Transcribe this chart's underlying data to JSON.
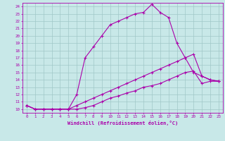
{
  "xlabel": "Windchill (Refroidissement éolien,°C)",
  "bg_color": "#c8e8e8",
  "grid_color": "#a0c8c8",
  "line_color": "#aa00aa",
  "xlim": [
    -0.5,
    23.5
  ],
  "ylim": [
    9.5,
    24.5
  ],
  "xticks": [
    0,
    1,
    2,
    3,
    4,
    5,
    6,
    7,
    8,
    9,
    10,
    11,
    12,
    13,
    14,
    15,
    16,
    17,
    18,
    19,
    20,
    21,
    22,
    23
  ],
  "yticks": [
    10,
    11,
    12,
    13,
    14,
    15,
    16,
    17,
    18,
    19,
    20,
    21,
    22,
    23,
    24
  ],
  "line1_x": [
    0,
    1,
    2,
    3,
    4,
    5,
    6,
    7,
    8,
    9,
    10,
    11,
    12,
    13,
    14,
    15,
    16,
    17,
    18,
    19,
    20,
    21,
    22,
    23
  ],
  "line1_y": [
    10.5,
    10.0,
    10.0,
    10.0,
    10.0,
    10.0,
    12.0,
    17.0,
    18.5,
    20.0,
    21.5,
    22.0,
    22.5,
    23.0,
    23.2,
    24.3,
    23.2,
    22.5,
    19.0,
    17.0,
    15.0,
    14.5,
    14.0,
    13.8
  ],
  "line2_x": [
    0,
    1,
    2,
    3,
    4,
    5,
    6,
    7,
    8,
    9,
    10,
    11,
    12,
    13,
    14,
    15,
    16,
    17,
    18,
    19,
    20,
    21,
    22,
    23
  ],
  "line2_y": [
    10.5,
    10.0,
    10.0,
    10.0,
    10.0,
    10.0,
    10.5,
    11.0,
    11.5,
    12.0,
    12.5,
    13.0,
    13.5,
    14.0,
    14.5,
    15.0,
    15.5,
    16.0,
    16.5,
    17.0,
    17.5,
    14.5,
    14.0,
    13.8
  ],
  "line3_x": [
    0,
    1,
    2,
    3,
    4,
    5,
    6,
    7,
    8,
    9,
    10,
    11,
    12,
    13,
    14,
    15,
    16,
    17,
    18,
    19,
    20,
    21,
    22,
    23
  ],
  "line3_y": [
    10.5,
    10.0,
    10.0,
    10.0,
    10.0,
    10.0,
    10.0,
    10.2,
    10.5,
    11.0,
    11.5,
    11.8,
    12.2,
    12.5,
    13.0,
    13.2,
    13.5,
    14.0,
    14.5,
    15.0,
    15.2,
    13.5,
    13.8,
    13.8
  ]
}
